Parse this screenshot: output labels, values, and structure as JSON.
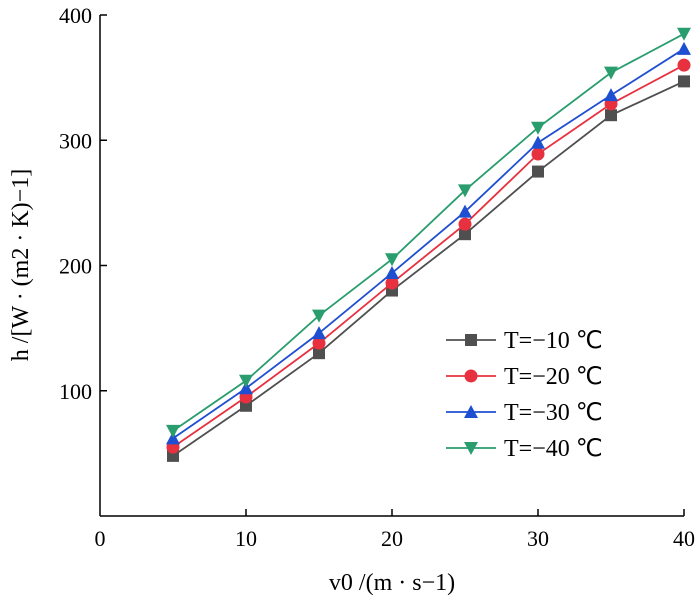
{
  "chart_data": {
    "type": "line",
    "x": [
      5,
      10,
      15,
      20,
      25,
      30,
      35,
      40
    ],
    "xlim": [
      0,
      40
    ],
    "ylim": [
      0,
      400
    ],
    "xticks": [
      "0",
      "10",
      "20",
      "30",
      "40"
    ],
    "yticks": [
      "100",
      "200",
      "300",
      "400"
    ],
    "xlabel": "v0 /(m · s−1)",
    "ylabel": "h /[W · (m2 · K)−1]",
    "grid": false,
    "legend_position": "center-right",
    "series": [
      {
        "name": "T=−10 ℃",
        "values": [
          48,
          88,
          130,
          180,
          225,
          275,
          320,
          347
        ],
        "color": "#4f4f4f",
        "marker": "square"
      },
      {
        "name": "T=−20 ℃",
        "values": [
          55,
          95,
          138,
          186,
          233,
          289,
          329,
          360
        ],
        "color": "#e8313f",
        "marker": "circle"
      },
      {
        "name": "T=−30 ℃",
        "values": [
          62,
          102,
          146,
          194,
          243,
          298,
          336,
          373
        ],
        "color": "#1f4fd1",
        "marker": "triangle-up"
      },
      {
        "name": "T=−40 ℃",
        "values": [
          68,
          108,
          160,
          205,
          260,
          310,
          354,
          385
        ],
        "color": "#2a9d6e",
        "marker": "triangle-down"
      }
    ]
  }
}
